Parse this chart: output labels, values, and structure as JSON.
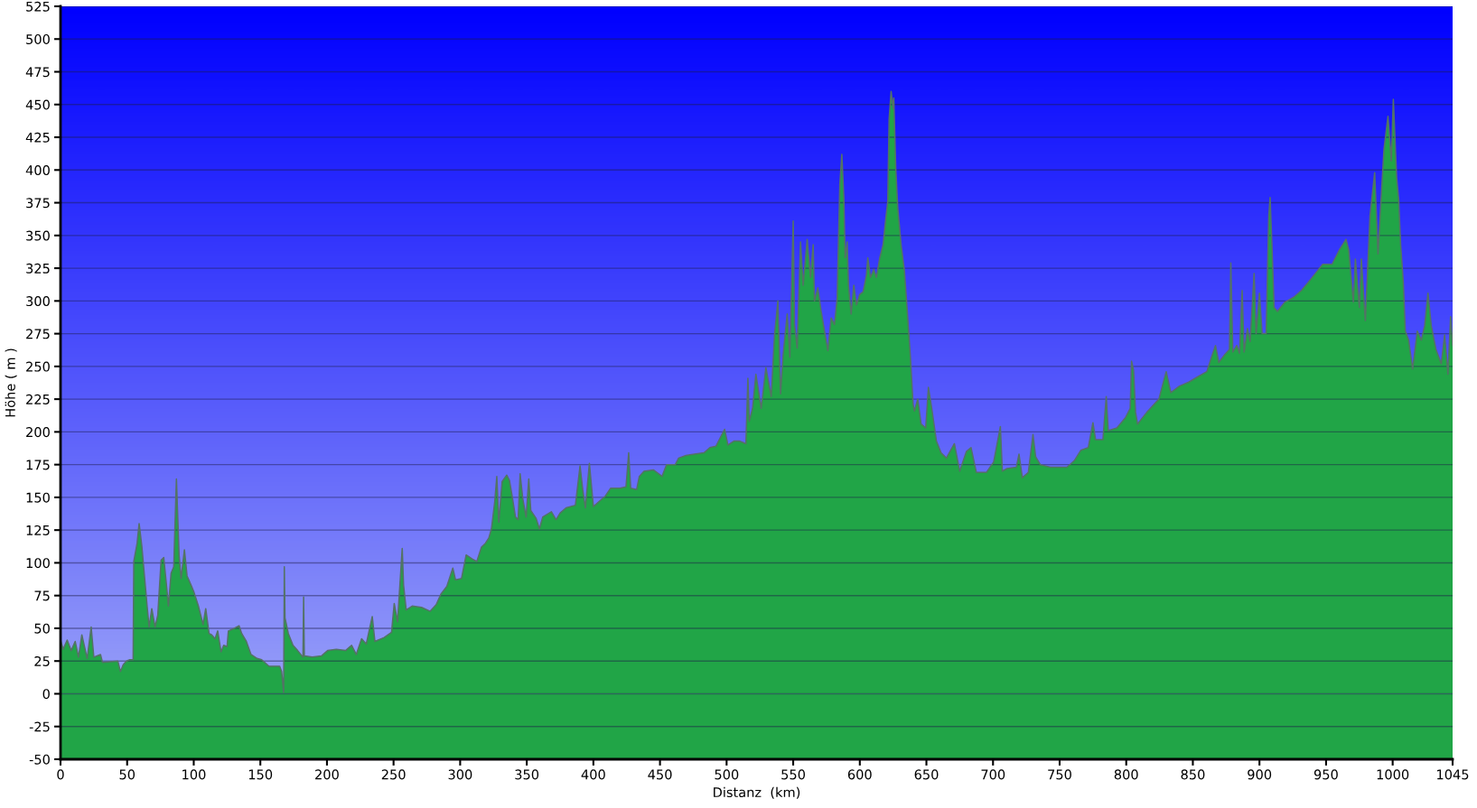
{
  "chart_data": {
    "type": "area",
    "xlabel": "Distanz  (km)",
    "ylabel": "Höhe ( m )",
    "xlim": [
      0,
      1045
    ],
    "ylim": [
      -50,
      525
    ],
    "xticks": [
      0,
      50,
      100,
      150,
      200,
      250,
      300,
      350,
      400,
      450,
      500,
      550,
      600,
      650,
      700,
      750,
      800,
      850,
      900,
      950,
      1000,
      1045
    ],
    "yticks": [
      -50,
      -25,
      0,
      25,
      50,
      75,
      100,
      125,
      150,
      175,
      200,
      225,
      250,
      275,
      300,
      325,
      350,
      375,
      400,
      425,
      450,
      475,
      500,
      525
    ],
    "grid": "y",
    "bands": [
      {
        "axis": "y",
        "from": -50,
        "to": 0,
        "color": "#21a547"
      }
    ],
    "series": [
      {
        "color": "#21a547",
        "x": [
          0,
          2,
          5,
          8,
          11,
          13.5,
          16,
          20,
          23,
          25,
          30,
          31.5,
          43,
          45,
          47,
          49.5,
          52,
          54.5,
          55,
          57.5,
          59,
          61,
          65,
          66.5,
          68.5,
          71,
          73,
          75.5,
          77.5,
          80,
          81,
          83,
          85,
          87,
          89,
          90.5,
          93,
          95,
          98,
          100,
          103.5,
          107,
          109,
          111.5,
          113.5,
          116,
          118,
          120.5,
          122.5,
          125,
          126,
          130.5,
          134,
          136,
          139.5,
          143,
          147.5,
          151,
          156.5,
          164.5,
          166,
          167.5,
          168,
          168.5,
          171,
          174.5,
          178,
          182,
          182.5,
          183,
          189,
          196,
          200.5,
          207,
          214,
          218.5,
          222,
          226,
          229.5,
          234,
          236,
          243,
          248.5,
          250.5,
          253,
          256.5,
          257.5,
          259.5,
          264,
          271,
          277.5,
          282,
          285.5,
          290,
          294.5,
          296.5,
          301,
          304.5,
          309,
          312.5,
          316,
          319,
          321.5,
          323.5,
          326,
          327.5,
          329,
          331.5,
          335,
          337,
          339,
          341.5,
          343.5,
          345,
          347,
          349.5,
          351.5,
          353,
          357,
          359.5,
          362,
          368.5,
          372,
          375,
          379.5,
          386.5,
          390,
          392,
          394,
          397,
          400,
          404.5,
          409,
          413,
          420,
          424.5,
          426.5,
          428,
          432.5,
          434.5,
          438,
          445,
          451.5,
          455,
          461.5,
          464,
          469.5,
          476,
          483,
          487.5,
          492,
          498.5,
          501,
          505.5,
          509.5,
          514.5,
          516,
          517,
          519.5,
          522,
          526,
          529.5,
          533.5,
          536,
          538.5,
          540.5,
          542.5,
          545.5,
          547.5,
          550,
          551,
          553,
          555.5,
          557.5,
          560.5,
          563,
          565,
          566,
          568.5,
          571,
          573.5,
          576,
          578.5,
          581,
          583,
          585,
          586.5,
          588,
          589,
          590.5,
          591.5,
          593.5,
          595.5,
          597.5,
          600,
          602.5,
          605,
          606,
          608,
          610.5,
          612.5,
          615,
          617.5,
          619.5,
          621,
          622,
          623.5,
          625,
          625.5,
          627,
          628.5,
          631,
          633.5,
          636,
          638,
          640,
          641,
          643.5,
          646,
          649.5,
          651.5,
          654,
          657.5,
          661,
          665,
          671,
          675,
          680,
          683.5,
          687.5,
          695,
          700.5,
          705.5,
          707,
          710.5,
          717.5,
          719.5,
          722,
          726.5,
          730,
          732,
          735.5,
          743,
          750,
          755.5,
          761,
          766,
          771.5,
          775,
          777,
          782.5,
          785,
          786.5,
          793,
          799.5,
          803,
          804,
          805.5,
          807,
          808.5,
          815.5,
          824.5,
          830,
          833.5,
          840,
          847,
          853.5,
          860.5,
          864,
          867,
          869.5,
          874,
          877.5,
          878.5,
          880,
          883,
          885,
          887,
          888.5,
          891,
          893,
          896,
          897.5,
          900,
          902,
          905,
          907,
          908,
          909.5,
          911,
          913.5,
          919,
          926,
          931.5,
          936.5,
          942,
          947.5,
          954.5,
          960,
          965,
          967,
          970.5,
          972,
          975,
          976.5,
          979.5,
          983,
          986.5,
          989,
          992,
          993.5,
          996.5,
          999,
          1000.5,
          1003,
          1004.5,
          1006,
          1008,
          1009.5,
          1012,
          1015,
          1018.5,
          1021.5,
          1024,
          1026.5,
          1029,
          1032.5,
          1036.5,
          1039,
          1041.5,
          1043.5,
          1045
        ],
        "values": [
          41,
          34,
          41,
          33,
          40,
          28,
          45,
          27,
          51,
          28,
          30,
          24,
          25,
          17,
          22,
          25,
          26,
          26,
          101,
          115,
          130,
          113,
          67,
          51,
          65,
          51,
          60,
          102,
          104,
          78,
          67,
          92,
          97,
          164,
          106,
          88,
          110,
          90,
          83,
          78,
          67,
          53,
          65,
          46,
          45,
          42,
          48,
          32,
          37,
          36,
          48,
          50,
          52,
          46,
          40,
          30,
          27,
          26,
          21,
          21,
          17,
          1,
          97,
          58,
          46,
          37,
          33,
          28,
          74,
          29,
          28,
          29,
          33,
          34,
          33,
          37,
          30,
          42,
          38,
          59,
          40,
          43,
          47,
          69,
          55,
          111,
          83,
          64,
          67,
          66,
          63,
          68,
          76,
          82,
          96,
          87,
          88,
          106,
          103,
          101,
          112,
          115,
          119,
          126,
          147,
          166,
          131,
          162,
          167,
          163,
          151,
          135,
          133,
          168,
          149,
          135,
          164,
          140,
          134,
          126,
          135,
          139,
          133,
          138,
          142,
          144,
          174,
          156,
          142,
          176,
          143,
          147,
          151,
          157,
          157,
          158,
          184,
          157,
          156,
          166,
          170,
          171,
          166,
          175,
          175,
          180,
          182,
          183,
          184,
          188,
          189,
          202,
          190,
          193,
          193,
          191,
          241,
          208,
          218,
          244,
          218,
          249,
          227,
          274,
          300,
          229,
          259,
          290,
          257,
          361,
          282,
          264,
          345,
          312,
          347,
          318,
          343,
          300,
          310,
          292,
          277,
          262,
          287,
          282,
          302,
          389,
          412,
          379,
          333,
          345,
          312,
          290,
          312,
          297,
          305,
          307,
          320,
          333,
          318,
          324,
          318,
          333,
          343,
          363,
          376,
          439,
          460,
          447,
          455,
          401,
          371,
          343,
          323,
          287,
          257,
          221,
          216,
          225,
          206,
          203,
          234,
          218,
          193,
          184,
          180,
          191,
          170,
          185,
          188,
          169,
          169,
          177,
          204,
          170,
          172,
          173,
          183,
          165,
          169,
          198,
          181,
          175,
          173,
          173,
          173,
          178,
          186,
          188,
          207,
          194,
          194,
          227,
          201,
          203,
          211,
          218,
          254,
          247,
          215,
          206,
          215,
          225,
          246,
          230,
          235,
          238,
          242,
          246,
          257,
          266,
          253,
          259,
          263,
          329,
          261,
          266,
          260,
          308,
          261,
          279,
          269,
          321,
          275,
          306,
          275,
          275,
          365,
          379,
          339,
          295,
          292,
          299,
          303,
          308,
          314,
          321,
          328,
          328,
          339,
          347,
          339,
          299,
          332,
          295,
          332,
          285,
          365,
          398,
          336,
          390,
          416,
          441,
          407,
          454,
          394,
          378,
          343,
          314,
          277,
          270,
          248,
          277,
          270,
          281,
          306,
          281,
          263,
          252,
          274,
          244,
          288,
          266
        ]
      }
    ]
  }
}
